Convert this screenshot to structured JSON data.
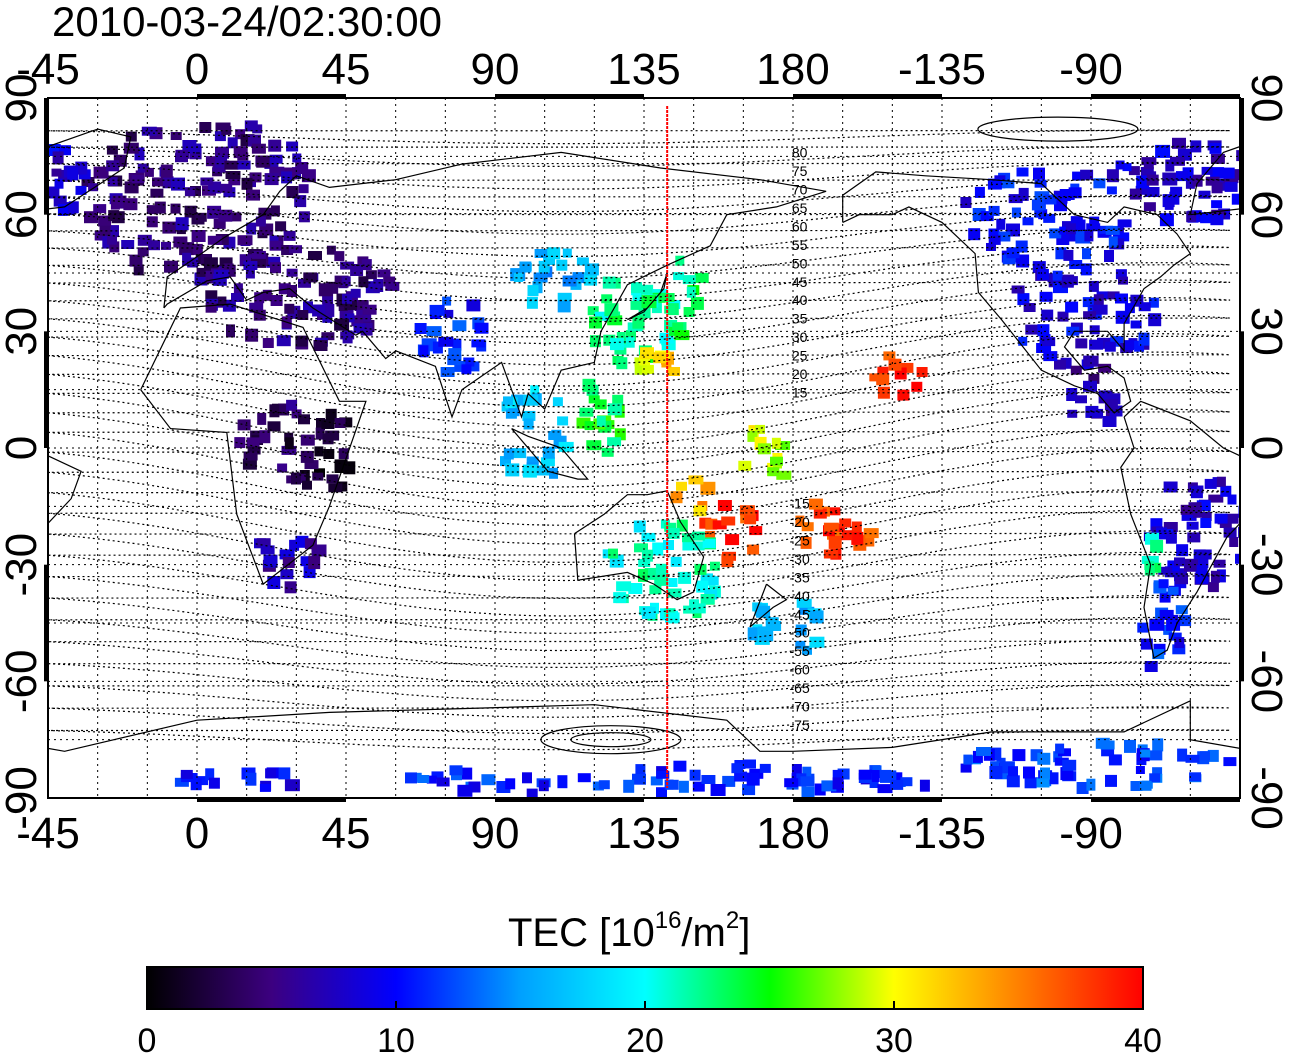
{
  "title": "2010-03-24/02:30:00",
  "colors": {
    "terminator": "#ff0000",
    "grid": "#000000",
    "frame": "#000000"
  },
  "map": {
    "projection": "equirectangular",
    "lon_center": 135,
    "lon_ticks": [
      {
        "lon": 0,
        "label": "0"
      },
      {
        "lon": 45,
        "label": "45"
      },
      {
        "lon": 90,
        "label": "90"
      },
      {
        "lon": 135,
        "label": "135"
      },
      {
        "lon": 180,
        "label": "180"
      },
      {
        "lon": 225,
        "label": "-135"
      },
      {
        "lon": 270,
        "label": "-90"
      },
      {
        "lon": 315,
        "label": "-45"
      }
    ],
    "lat_ticks": [
      {
        "lat": 90,
        "label": "90"
      },
      {
        "lat": 60,
        "label": "60"
      },
      {
        "lat": 30,
        "label": "30"
      },
      {
        "lat": 0,
        "label": "0"
      },
      {
        "lat": -30,
        "label": "-30"
      },
      {
        "lat": -60,
        "label": "-60"
      },
      {
        "lat": -90,
        "label": "-90"
      }
    ],
    "terminator_lon": 142,
    "contour_labels": [
      "80",
      "75",
      "70",
      "65",
      "60",
      "55",
      "50",
      "45",
      "40",
      "35",
      "30",
      "25",
      "20",
      "15",
      "-15",
      "-20",
      "-25",
      "-30",
      "-35",
      "-40",
      "-45",
      "-50",
      "-55",
      "-60",
      "-65",
      "-70",
      "-75"
    ],
    "tec_regions": [
      {
        "lon": 0,
        "lat": 65,
        "tec": 5,
        "w": 70,
        "h": 40
      },
      {
        "lon": 30,
        "lat": 40,
        "tec": 5,
        "w": 55,
        "h": 25
      },
      {
        "lon": 20,
        "lat": 5,
        "tec": 4,
        "w": 20,
        "h": 20
      },
      {
        "lon": 35,
        "lat": 0,
        "tec": 2,
        "w": 20,
        "h": 25
      },
      {
        "lon": 25,
        "lat": -28,
        "tec": 7,
        "w": 20,
        "h": 15
      },
      {
        "lon": 75,
        "lat": 30,
        "tec": 11,
        "w": 20,
        "h": 20
      },
      {
        "lon": 105,
        "lat": 45,
        "tec": 16,
        "w": 25,
        "h": 15
      },
      {
        "lon": 100,
        "lat": 5,
        "tec": 17,
        "w": 20,
        "h": 25
      },
      {
        "lon": 130,
        "lat": 35,
        "tec": 22,
        "w": 25,
        "h": 25
      },
      {
        "lon": 135,
        "lat": 22,
        "tec": 31,
        "w": 15,
        "h": 10
      },
      {
        "lon": 120,
        "lat": 10,
        "tec": 24,
        "w": 15,
        "h": 20
      },
      {
        "lon": 145,
        "lat": 40,
        "tec": 23,
        "w": 12,
        "h": 20
      },
      {
        "lon": 160,
        "lat": -20,
        "tec": 38,
        "w": 20,
        "h": 15
      },
      {
        "lon": 190,
        "lat": -20,
        "tec": 38,
        "w": 25,
        "h": 15
      },
      {
        "lon": 170,
        "lat": 0,
        "tec": 29,
        "w": 15,
        "h": 15
      },
      {
        "lon": 150,
        "lat": -10,
        "tec": 33,
        "w": 15,
        "h": 10
      },
      {
        "lon": 140,
        "lat": -30,
        "tec": 21,
        "w": 35,
        "h": 25
      },
      {
        "lon": 175,
        "lat": -45,
        "tec": 17,
        "w": 25,
        "h": 15
      },
      {
        "lon": 210,
        "lat": 20,
        "tec": 38,
        "w": 15,
        "h": 10
      },
      {
        "lon": 255,
        "lat": 60,
        "tec": 10,
        "w": 50,
        "h": 25
      },
      {
        "lon": 265,
        "lat": 35,
        "tec": 9,
        "w": 45,
        "h": 25
      },
      {
        "lon": 270,
        "lat": 15,
        "tec": 6,
        "w": 20,
        "h": 15
      },
      {
        "lon": 300,
        "lat": 70,
        "tec": 8,
        "w": 55,
        "h": 20
      },
      {
        "lon": 300,
        "lat": -20,
        "tec": 8,
        "w": 30,
        "h": 30
      },
      {
        "lon": 290,
        "lat": -45,
        "tec": 11,
        "w": 15,
        "h": 25
      },
      {
        "lon": 287,
        "lat": -25,
        "tec": 22,
        "w": 4,
        "h": 10
      },
      {
        "lon": 135,
        "lat": -84,
        "tec": 11,
        "w": 170,
        "h": 8
      },
      {
        "lon": 270,
        "lat": -80,
        "tec": 12,
        "w": 80,
        "h": 12
      },
      {
        "lon": 10,
        "lat": -84,
        "tec": 10,
        "w": 40,
        "h": 6
      }
    ]
  },
  "colorbar": {
    "title": "TEC  [10",
    "title_sup1": "16",
    "title_mid": "/m",
    "title_sup2": "2",
    "title_end": "]",
    "min": 0,
    "max": 40,
    "ticks": [
      {
        "value": 0,
        "label": "0"
      },
      {
        "value": 10,
        "label": "10"
      },
      {
        "value": 20,
        "label": "20"
      },
      {
        "value": 30,
        "label": "30"
      },
      {
        "value": 40,
        "label": "40"
      }
    ],
    "stops": [
      "#000000",
      "#3c0080",
      "#0000ff",
      "#00a0ff",
      "#00ffff",
      "#00ff00",
      "#ffff00",
      "#ff8000",
      "#ff0000"
    ]
  }
}
